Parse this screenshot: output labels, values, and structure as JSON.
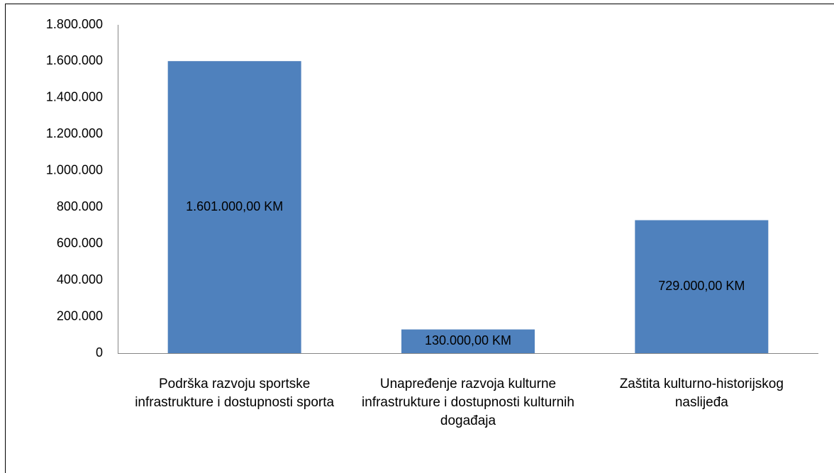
{
  "chart_data": {
    "type": "bar",
    "categories": [
      "Podrška razvoju sportske infrastrukture i dostupnosti sporta",
      "Unapređenje razvoja kulturne infrastrukture i dostupnosti kulturnih događaja",
      "Zaštita kulturno-historijskog naslijeđa"
    ],
    "values": [
      1601000,
      130000,
      729000
    ],
    "value_labels": [
      "1.601.000,00 KM",
      "130.000,00 KM",
      "729.000,00 KM"
    ],
    "color": "#4f81bd",
    "ylim": [
      0,
      1800000
    ],
    "yticks": [
      0,
      {
        "value": 200000,
        "label": "200.000"
      },
      {
        "value": 400000,
        "label": "400.000"
      },
      {
        "value": 600000,
        "label": "600.000"
      },
      {
        "value": 800000,
        "label": "800.000"
      },
      {
        "value": 1000000,
        "label": "1.000.000"
      },
      {
        "value": 1200000,
        "label": "1.200.000"
      },
      {
        "value": 1400000,
        "label": "1.400.000"
      },
      {
        "value": 1600000,
        "label": "1.600.000"
      },
      {
        "value": 1800000,
        "label": "1.800.000"
      }
    ]
  }
}
